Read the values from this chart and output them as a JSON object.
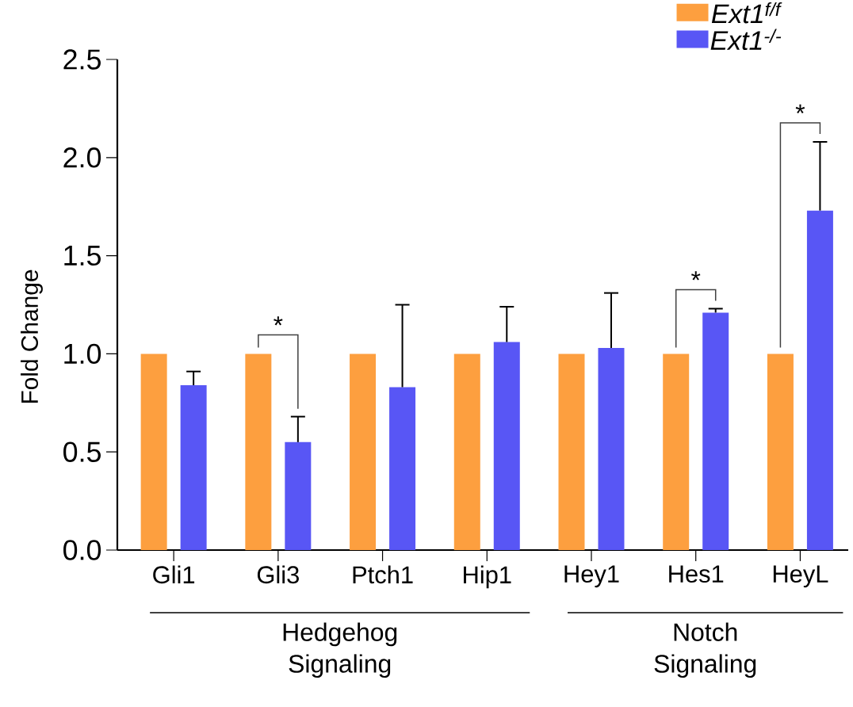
{
  "chart_data": {
    "type": "bar",
    "ylabel": "Fold Change",
    "categories": [
      "Gli1",
      "Gli3",
      "Ptch1",
      "Hip1",
      "Hey1",
      "Hes1",
      "HeyL"
    ],
    "series": [
      {
        "name": "Ext1$^{f/f}$",
        "color": "#fd9f3f",
        "values": [
          1.0,
          1.0,
          1.0,
          1.0,
          1.0,
          1.0,
          1.0
        ]
      },
      {
        "name": "Ext1$^{-/-}$",
        "color": "#5856f5",
        "values": [
          0.84,
          0.55,
          0.83,
          1.06,
          1.03,
          1.21,
          1.73
        ],
        "errors": [
          [
            0.84,
            0.91
          ],
          [
            0.55,
            0.68
          ],
          [
            0.83,
            1.25
          ],
          [
            1.06,
            1.24
          ],
          [
            1.03,
            1.31
          ],
          [
            1.21,
            1.23
          ],
          [
            1.73,
            2.08
          ]
        ]
      }
    ],
    "ylim": [
      0,
      2.5
    ],
    "yticks": [
      {
        "value": 0,
        "label": "0.0"
      },
      {
        "value": 0.5,
        "label": "0.5"
      },
      {
        "value": 1.0,
        "label": "1.0"
      },
      {
        "value": 1.5,
        "label": "1.5"
      },
      {
        "value": 2.0,
        "label": "2.0"
      },
      {
        "value": 2.5,
        "label": "2.5"
      }
    ],
    "legend": "top right",
    "annotations": [
      "*",
      "*",
      "*",
      "Hedgehog Signaling",
      "Notch Signaling"
    ]
  }
}
